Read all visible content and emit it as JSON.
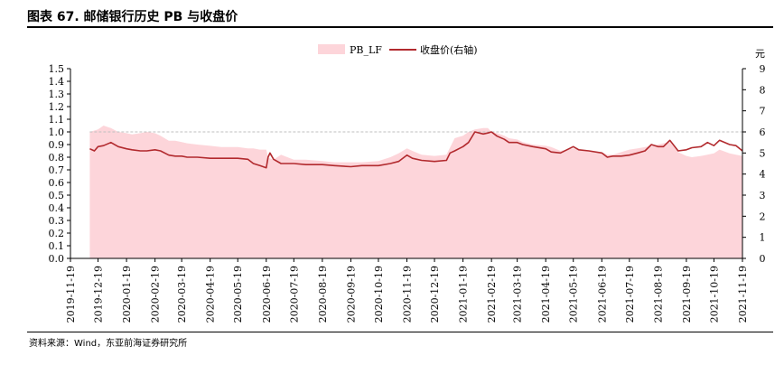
{
  "header": {
    "title": "图表 67. 邮储银行历史 PB 与收盘价"
  },
  "footer": {
    "source": "资料来源：Wind，东亚前海证券研究所"
  },
  "colors": {
    "area": "#fdd5da",
    "line": "#b22a2e",
    "reference": "#bfbfbf"
  },
  "chart_data": {
    "type": "area",
    "legend_position": "top-center",
    "grid": false,
    "left_axis": {
      "ticks": [
        "0.0",
        "0.1",
        "0.2",
        "0.3",
        "0.4",
        "0.5",
        "0.6",
        "0.7",
        "0.8",
        "0.9",
        "1.0",
        "1.1",
        "1.2",
        "1.3",
        "1.4",
        "1.5"
      ],
      "range": [
        0,
        1.5
      ]
    },
    "right_axis": {
      "unit": "元",
      "ticks": [
        "0",
        "1",
        "2",
        "3",
        "4",
        "5",
        "6",
        "7",
        "8",
        "9"
      ],
      "range": [
        0,
        9
      ]
    },
    "x_ticks": [
      "2019-11-19",
      "2019-12-19",
      "2020-01-19",
      "2020-02-19",
      "2020-03-19",
      "2020-04-19",
      "2020-05-19",
      "2020-06-19",
      "2020-07-19",
      "2020-08-19",
      "2020-09-19",
      "2020-10-19",
      "2020-11-19",
      "2020-12-19",
      "2021-01-19",
      "2021-02-19",
      "2021-03-19",
      "2021-04-19",
      "2021-05-19",
      "2021-06-19",
      "2021-07-19",
      "2021-08-19",
      "2021-09-19",
      "2021-10-19",
      "2021-11-19"
    ],
    "reference_line": {
      "axis": "left",
      "value": 1.0
    },
    "series": [
      {
        "name": "PB_LF",
        "type": "area",
        "axis": "left",
        "x": [
          "2019-12-10",
          "2019-12-19",
          "2019-12-25",
          "2020-01-02",
          "2020-01-10",
          "2020-01-19",
          "2020-01-25",
          "2020-02-03",
          "2020-02-10",
          "2020-02-19",
          "2020-02-25",
          "2020-03-05",
          "2020-03-12",
          "2020-03-19",
          "2020-03-25",
          "2020-04-05",
          "2020-04-19",
          "2020-05-01",
          "2020-05-19",
          "2020-05-30",
          "2020-06-05",
          "2020-06-12",
          "2020-06-19",
          "2020-06-21",
          "2020-06-23",
          "2020-06-27",
          "2020-07-05",
          "2020-07-19",
          "2020-08-01",
          "2020-08-19",
          "2020-09-01",
          "2020-09-19",
          "2020-10-01",
          "2020-10-19",
          "2020-11-01",
          "2020-11-10",
          "2020-11-19",
          "2020-11-25",
          "2020-12-05",
          "2020-12-19",
          "2021-01-01",
          "2021-01-10",
          "2021-01-19",
          "2021-01-25",
          "2021-02-01",
          "2021-02-10",
          "2021-02-15",
          "2021-02-19",
          "2021-02-25",
          "2021-03-05",
          "2021-03-10",
          "2021-03-19",
          "2021-03-25",
          "2021-04-05",
          "2021-04-19",
          "2021-04-25",
          "2021-05-05",
          "2021-05-19",
          "2021-05-25",
          "2021-06-05",
          "2021-06-19",
          "2021-06-25",
          "2021-07-01",
          "2021-07-10",
          "2021-07-19",
          "2021-07-28",
          "2021-08-05",
          "2021-08-19",
          "2021-08-25",
          "2021-09-01",
          "2021-09-10",
          "2021-09-19",
          "2021-09-25",
          "2021-10-05",
          "2021-10-19",
          "2021-10-25",
          "2021-11-05",
          "2021-11-12",
          "2021-11-19"
        ],
        "values": [
          1.0,
          1.02,
          1.05,
          1.03,
          1.0,
          0.99,
          0.98,
          0.99,
          1.0,
          0.99,
          0.97,
          0.93,
          0.93,
          0.92,
          0.91,
          0.9,
          0.89,
          0.88,
          0.88,
          0.87,
          0.87,
          0.86,
          0.86,
          0.8,
          0.79,
          0.78,
          0.82,
          0.78,
          0.78,
          0.77,
          0.76,
          0.76,
          0.76,
          0.77,
          0.8,
          0.83,
          0.87,
          0.85,
          0.82,
          0.81,
          0.82,
          0.95,
          0.97,
          1.0,
          1.02,
          1.03,
          1.03,
          1.0,
          0.99,
          0.97,
          0.95,
          0.94,
          0.92,
          0.9,
          0.89,
          0.88,
          0.85,
          0.87,
          0.86,
          0.85,
          0.84,
          0.82,
          0.82,
          0.84,
          0.86,
          0.87,
          0.88,
          0.9,
          0.91,
          0.92,
          0.84,
          0.81,
          0.8,
          0.81,
          0.83,
          0.86,
          0.83,
          0.82,
          0.81
        ]
      },
      {
        "name": "收盘价(右轴)",
        "type": "line",
        "axis": "right",
        "x": [
          "2019-12-10",
          "2019-12-15",
          "2019-12-19",
          "2019-12-25",
          "2020-01-02",
          "2020-01-10",
          "2020-01-19",
          "2020-01-25",
          "2020-02-03",
          "2020-02-10",
          "2020-02-19",
          "2020-02-25",
          "2020-03-05",
          "2020-03-12",
          "2020-03-19",
          "2020-03-25",
          "2020-04-05",
          "2020-04-19",
          "2020-05-01",
          "2020-05-19",
          "2020-05-30",
          "2020-06-05",
          "2020-06-12",
          "2020-06-19",
          "2020-06-21",
          "2020-06-23",
          "2020-06-27",
          "2020-07-05",
          "2020-07-19",
          "2020-08-01",
          "2020-08-19",
          "2020-09-01",
          "2020-09-19",
          "2020-10-01",
          "2020-10-19",
          "2020-11-01",
          "2020-11-10",
          "2020-11-19",
          "2020-11-25",
          "2020-12-05",
          "2020-12-19",
          "2021-01-01",
          "2021-01-05",
          "2021-01-10",
          "2021-01-19",
          "2021-01-25",
          "2021-02-01",
          "2021-02-10",
          "2021-02-15",
          "2021-02-19",
          "2021-02-25",
          "2021-03-05",
          "2021-03-10",
          "2021-03-19",
          "2021-03-25",
          "2021-04-05",
          "2021-04-19",
          "2021-04-25",
          "2021-05-05",
          "2021-05-19",
          "2021-05-25",
          "2021-06-05",
          "2021-06-19",
          "2021-06-25",
          "2021-07-01",
          "2021-07-10",
          "2021-07-19",
          "2021-07-28",
          "2021-08-05",
          "2021-08-12",
          "2021-08-19",
          "2021-08-25",
          "2021-09-01",
          "2021-09-10",
          "2021-09-19",
          "2021-09-25",
          "2021-10-05",
          "2021-10-12",
          "2021-10-19",
          "2021-10-25",
          "2021-11-05",
          "2021-11-12",
          "2021-11-19"
        ],
        "values": [
          5.2,
          5.1,
          5.3,
          5.35,
          5.5,
          5.3,
          5.2,
          5.15,
          5.1,
          5.1,
          5.15,
          5.1,
          4.9,
          4.85,
          4.85,
          4.8,
          4.8,
          4.75,
          4.75,
          4.75,
          4.7,
          4.5,
          4.4,
          4.3,
          4.8,
          5.0,
          4.7,
          4.5,
          4.5,
          4.45,
          4.45,
          4.4,
          4.35,
          4.4,
          4.4,
          4.5,
          4.6,
          4.9,
          4.75,
          4.65,
          4.6,
          4.65,
          5.0,
          5.1,
          5.3,
          5.5,
          6.0,
          5.9,
          5.95,
          6.0,
          5.8,
          5.65,
          5.5,
          5.5,
          5.4,
          5.3,
          5.2,
          5.05,
          5.0,
          5.3,
          5.15,
          5.1,
          5.0,
          4.8,
          4.85,
          4.85,
          4.9,
          5.0,
          5.1,
          5.4,
          5.3,
          5.3,
          5.6,
          5.1,
          5.15,
          5.25,
          5.3,
          5.5,
          5.35,
          5.6,
          5.4,
          5.35,
          5.1
        ]
      }
    ]
  }
}
